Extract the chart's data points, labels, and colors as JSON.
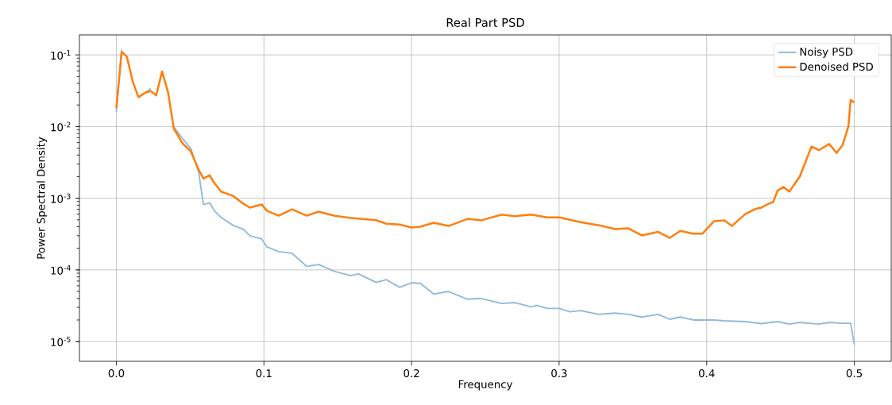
{
  "chart_data": {
    "type": "line",
    "title": "Real Part PSD",
    "xlabel": "Frequency",
    "ylabel": "Power Spectral Density",
    "series": [
      {
        "name": "Noisy PSD",
        "color": "#8fbbd9",
        "x": [
          0,
          0.0036,
          0.0071,
          0.0112,
          0.015,
          0.0195,
          0.0234,
          0.027,
          0.031,
          0.035,
          0.039,
          0.045,
          0.0505,
          0.0558,
          0.059,
          0.0632,
          0.0664,
          0.071,
          0.079,
          0.086,
          0.0905,
          0.0985,
          0.102,
          0.11,
          0.119,
          0.129,
          0.137,
          0.148,
          0.159,
          0.164,
          0.176,
          0.183,
          0.192,
          0.2,
          0.206,
          0.215,
          0.225,
          0.238,
          0.247,
          0.261,
          0.27,
          0.281,
          0.285,
          0.292,
          0.3,
          0.3073,
          0.3144,
          0.327,
          0.338,
          0.347,
          0.356,
          0.367,
          0.375,
          0.382,
          0.391,
          0.405,
          0.412,
          0.426,
          0.437,
          0.448,
          0.456,
          0.463,
          0.476,
          0.483,
          0.492,
          0.4975,
          0.5
        ],
        "values": [
          0.016,
          0.118,
          null,
          null,
          null,
          0.0296,
          0.034,
          null,
          null,
          null,
          0.0098,
          0.0068,
          0.0049,
          0.0023,
          0.00082,
          0.00086,
          0.00067,
          0.00054,
          0.00042,
          0.00037,
          0.0003,
          0.00027,
          0.00021,
          0.00018,
          0.000171,
          0.000112,
          0.000119,
          9.5e-05,
          8.3e-05,
          8.8e-05,
          6.7e-05,
          7.3e-05,
          5.7e-05,
          6.6e-05,
          6.5e-05,
          4.6e-05,
          5e-05,
          3.9e-05,
          4e-05,
          3.4e-05,
          3.5e-05,
          3.05e-05,
          3.2e-05,
          2.9e-05,
          2.9e-05,
          2.6e-05,
          2.7e-05,
          2.4e-05,
          2.5e-05,
          2.4e-05,
          2.2e-05,
          2.4e-05,
          2.05e-05,
          2.2e-05,
          2e-05,
          2e-05,
          1.95e-05,
          1.9e-05,
          1.78e-05,
          1.9e-05,
          1.75e-05,
          1.85e-05,
          1.75e-05,
          1.85e-05,
          1.8e-05,
          1.8e-05,
          9.1e-06
        ]
      },
      {
        "name": "Denoised PSD",
        "color": "#ff7f0e",
        "x": [
          0,
          0.0036,
          0.0071,
          0.0112,
          0.015,
          0.0195,
          0.0234,
          0.027,
          0.031,
          0.035,
          0.039,
          0.045,
          0.0505,
          0.0558,
          0.059,
          0.0632,
          0.0664,
          0.071,
          0.079,
          0.086,
          0.0905,
          0.0985,
          0.102,
          0.11,
          0.119,
          0.129,
          0.137,
          0.148,
          0.159,
          0.176,
          0.183,
          0.192,
          0.2,
          0.206,
          0.215,
          0.225,
          0.238,
          0.247,
          0.261,
          0.27,
          0.281,
          0.292,
          0.3,
          0.3144,
          0.327,
          0.338,
          0.347,
          0.356,
          0.367,
          0.375,
          0.382,
          0.391,
          0.397,
          0.405,
          0.412,
          0.417,
          0.426,
          0.433,
          0.437,
          0.443,
          0.445,
          0.448,
          0.452,
          0.456,
          0.463,
          0.471,
          0.476,
          0.483,
          0.488,
          0.492,
          0.496,
          0.4975,
          0.5
        ],
        "values": [
          0.018,
          0.11,
          0.095,
          0.042,
          0.0257,
          0.0296,
          0.0312,
          0.0273,
          0.0586,
          0.0304,
          0.0093,
          0.0058,
          0.0045,
          0.0025,
          0.00188,
          0.0021,
          0.00163,
          0.00124,
          0.00108,
          0.00084,
          0.00074,
          0.00082,
          0.00067,
          0.00057,
          0.0007,
          0.00057,
          0.00065,
          0.00057,
          0.00053,
          0.000495,
          0.00044,
          0.00043,
          0.00039,
          0.0004,
          0.000455,
          0.00041,
          0.000516,
          0.00049,
          0.00059,
          0.00056,
          0.00059,
          0.00054,
          0.00054,
          0.000463,
          0.00042,
          0.00037,
          0.00038,
          0.000303,
          0.00034,
          0.00028,
          0.00035,
          0.00032,
          0.00032,
          0.00048,
          0.00049,
          0.00041,
          0.0006,
          0.00071,
          0.00074,
          0.00086,
          0.00088,
          0.00128,
          0.00143,
          0.00124,
          0.002,
          0.00525,
          0.0047,
          0.0057,
          0.0043,
          0.0055,
          0.0101,
          0.0236,
          0.0217
        ]
      }
    ],
    "xlim": [
      -0.025,
      0.525
    ],
    "ylim": [
      5.3e-06,
      0.19
    ],
    "xticks": [
      {
        "value": 0,
        "label": "0.0"
      },
      0.1,
      0.2,
      0.3,
      0.4,
      0.5
    ],
    "yticks": [
      {
        "value": 1e-05,
        "label": "10$^{-5}$"
      },
      {
        "value": 0.0001,
        "label": "10$^{-4}$"
      },
      {
        "value": 0.001,
        "label": "10$^{-3}$"
      },
      {
        "value": 0.01,
        "label": "10$^{-2}$"
      },
      {
        "value": 0.1,
        "label": "10$^{-1}$"
      }
    ],
    "log": "y",
    "grid": true,
    "legend": "top right",
    "line_style": "solid"
  }
}
